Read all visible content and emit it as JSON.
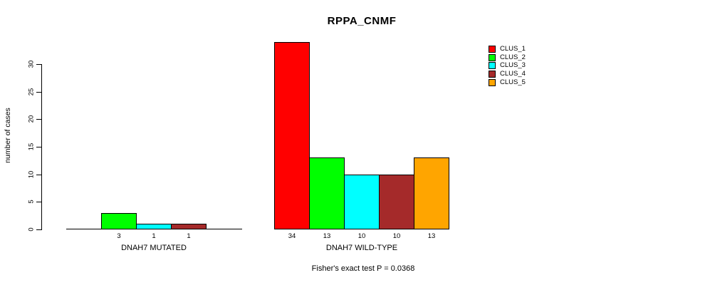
{
  "chart_data": {
    "type": "bar",
    "title": "RPPA_CNMF",
    "ylabel": "number of cases",
    "xlabel": "",
    "ylim": [
      0,
      34
    ],
    "yticks": [
      0,
      5,
      10,
      15,
      20,
      25,
      30
    ],
    "grid": false,
    "legend_position": "top-right",
    "series_names": [
      "CLUS_1",
      "CLUS_2",
      "CLUS_3",
      "CLUS_4",
      "CLUS_5"
    ],
    "series_colors": [
      "#FF0000",
      "#00FF00",
      "#00FFFF",
      "#A52A2A",
      "#FFA500"
    ],
    "groups": [
      {
        "label": "DNAH7 MUTATED",
        "values": [
          0,
          3,
          1,
          1,
          0
        ],
        "value_labels": [
          "",
          "3",
          "1",
          "1",
          ""
        ]
      },
      {
        "label": "DNAH7 WILD-TYPE",
        "values": [
          34,
          13,
          10,
          10,
          13
        ],
        "value_labels": [
          "34",
          "13",
          "10",
          "10",
          "13"
        ]
      }
    ],
    "annotation": "Fisher's exact test P = 0.0368"
  }
}
